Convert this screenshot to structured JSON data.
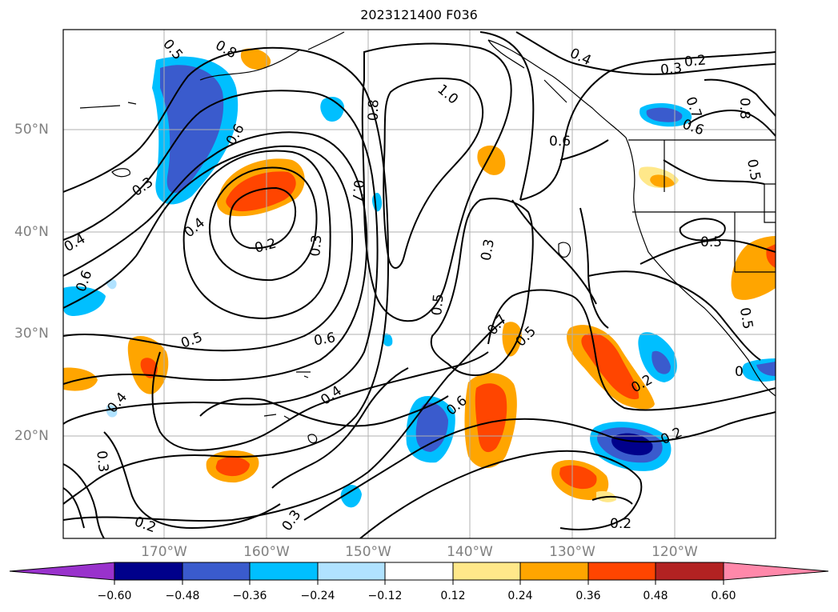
{
  "title": "2023121400 F036",
  "lat_labels": [
    "50°N",
    "40°N",
    "30°N",
    "20°N"
  ],
  "lon_labels": [
    "170°W",
    "160°W",
    "150°W",
    "140°W",
    "130°W",
    "120°W"
  ],
  "colorbar": {
    "ticks": [
      "−0.60",
      "−0.48",
      "−0.36",
      "−0.24",
      "−0.12",
      "0.12",
      "0.24",
      "0.36",
      "0.48",
      "0.60"
    ],
    "colors": [
      "#9932cc",
      "#00008b",
      "#3a5bcd",
      "#00bfff",
      "#b0e2ff",
      "#ffffff",
      "#ffe88a",
      "#ffa500",
      "#ff4500",
      "#b22222",
      "#ff88aa"
    ]
  },
  "contour_labels": [
    "0.5",
    "0.8",
    "0.6",
    "0.3",
    "0.4",
    "0.2",
    "0.3",
    "1.0",
    "0.8",
    "0.7",
    "0.4",
    "0.3",
    "0.2",
    "0.7",
    "0.8",
    "0.6",
    "0.5",
    "0.6",
    "0.4",
    "0.6",
    "0.3",
    "0.5",
    "0.5",
    "0.5",
    "0.6",
    "0.7",
    "0.5",
    "0.4",
    "0.4",
    "0.6",
    "0.2",
    "0.3",
    "0.2",
    "0.3",
    "0.2",
    "0.2",
    "0.2",
    "0.5",
    "0"
  ]
}
